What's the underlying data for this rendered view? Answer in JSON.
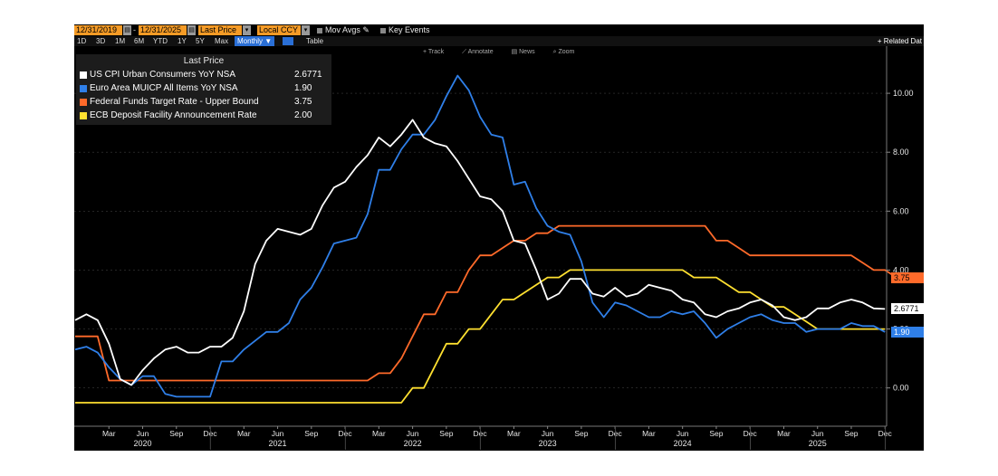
{
  "toolbar": {
    "start_date": "12/31/2019",
    "end_date": "12/31/2025",
    "field": "Last Price",
    "currency": "Local CCY",
    "mov_avgs": "Mov Avgs",
    "key_events": "Key Events",
    "periods": [
      "1D",
      "3D",
      "1M",
      "6M",
      "YTD",
      "1Y",
      "5Y",
      "Max"
    ],
    "frequency": "Monthly ▼",
    "table": "Table",
    "related": "+ Related Dat",
    "track": "Track",
    "annotate": "Annotate",
    "news": "News",
    "zoom": "Zoom"
  },
  "legend": {
    "header": "Last Price",
    "items": [
      {
        "name": "US CPI Urban Consumers YoY NSA",
        "value": "2.6771",
        "color": "#ffffff"
      },
      {
        "name": "Euro Area MUICP All Items YoY NSA",
        "value": "1.90",
        "color": "#2f7fe8"
      },
      {
        "name": "Federal Funds Target Rate - Upper Bound",
        "value": "3.75",
        "color": "#ff6a2a"
      },
      {
        "name": "ECB Deposit Facility Announcement Rate",
        "value": "2.00",
        "color": "#ffe030"
      }
    ]
  },
  "chart_data": {
    "type": "line",
    "title": "",
    "xlabel": "",
    "ylabel": "",
    "ylim": [
      -1.3,
      11.6
    ],
    "x_start": "2019-12",
    "yticks": [
      "0.00",
      "2.00",
      "4.00",
      "6.00",
      "8.00",
      "10.00"
    ],
    "ytick_values": [
      0,
      2,
      4,
      6,
      8,
      10
    ],
    "month_ticks": [
      "Mar",
      "Jun",
      "Sep",
      "Dec",
      "Mar",
      "Jun",
      "Sep",
      "Dec",
      "Mar",
      "Jun",
      "Sep",
      "Dec",
      "Mar",
      "Jun",
      "Sep",
      "Dec",
      "Mar",
      "Jun",
      "Sep",
      "Dec",
      "Mar",
      "Jun",
      "Sep",
      "Dec"
    ],
    "month_tick_index": [
      3,
      6,
      9,
      12,
      15,
      18,
      21,
      24,
      27,
      30,
      33,
      36,
      39,
      42,
      45,
      48,
      51,
      54,
      57,
      60,
      63,
      66,
      69,
      72
    ],
    "year_labels": [
      "2020",
      "2021",
      "2022",
      "2023",
      "2024",
      "2025"
    ],
    "year_label_index": [
      6,
      18,
      30,
      42,
      54,
      66
    ],
    "series": [
      {
        "name": "US CPI Urban Consumers YoY NSA",
        "color": "#ffffff",
        "last_label": "2.6771",
        "values": [
          2.3,
          2.5,
          2.3,
          1.5,
          0.3,
          0.1,
          0.6,
          1.0,
          1.3,
          1.4,
          1.2,
          1.2,
          1.4,
          1.4,
          1.7,
          2.6,
          4.2,
          5.0,
          5.4,
          5.3,
          5.2,
          5.4,
          6.2,
          6.8,
          7.0,
          7.5,
          7.9,
          8.5,
          8.2,
          8.6,
          9.1,
          8.5,
          8.3,
          8.2,
          7.7,
          7.1,
          6.5,
          6.4,
          6.0,
          5.0,
          4.9,
          4.0,
          3.0,
          3.2,
          3.7,
          3.7,
          3.2,
          3.1,
          3.4,
          3.1,
          3.2,
          3.5,
          3.4,
          3.3,
          3.0,
          2.9,
          2.5,
          2.4,
          2.6,
          2.7,
          2.9,
          3.0,
          2.8,
          2.4,
          2.3,
          2.4,
          2.7,
          2.7,
          2.9,
          3.0,
          2.9,
          2.7,
          2.68
        ]
      },
      {
        "name": "Euro Area MUICP All Items YoY NSA",
        "color": "#2f7fe8",
        "last_label": "1.90",
        "values": [
          1.3,
          1.4,
          1.2,
          0.7,
          0.3,
          0.1,
          0.4,
          0.4,
          -0.2,
          -0.3,
          -0.3,
          -0.3,
          -0.3,
          0.9,
          0.9,
          1.3,
          1.6,
          1.9,
          1.9,
          2.2,
          3.0,
          3.4,
          4.1,
          4.9,
          5.0,
          5.1,
          5.9,
          7.4,
          7.4,
          8.1,
          8.6,
          8.6,
          9.1,
          9.9,
          10.6,
          10.1,
          9.2,
          8.6,
          8.5,
          6.9,
          7.0,
          6.1,
          5.5,
          5.3,
          5.2,
          4.3,
          2.9,
          2.4,
          2.9,
          2.8,
          2.6,
          2.4,
          2.4,
          2.6,
          2.5,
          2.6,
          2.2,
          1.7,
          2.0,
          2.2,
          2.4,
          2.5,
          2.3,
          2.2,
          2.2,
          1.9,
          2.0,
          2.0,
          2.0,
          2.2,
          2.1,
          2.1,
          1.9
        ]
      },
      {
        "name": "Federal Funds Target Rate - Upper Bound",
        "color": "#ff6a2a",
        "last_label": "3.75",
        "values": [
          1.75,
          1.75,
          1.75,
          0.25,
          0.25,
          0.25,
          0.25,
          0.25,
          0.25,
          0.25,
          0.25,
          0.25,
          0.25,
          0.25,
          0.25,
          0.25,
          0.25,
          0.25,
          0.25,
          0.25,
          0.25,
          0.25,
          0.25,
          0.25,
          0.25,
          0.25,
          0.25,
          0.5,
          0.5,
          1.0,
          1.75,
          2.5,
          2.5,
          3.25,
          3.25,
          4.0,
          4.5,
          4.5,
          4.75,
          5.0,
          5.0,
          5.25,
          5.25,
          5.5,
          5.5,
          5.5,
          5.5,
          5.5,
          5.5,
          5.5,
          5.5,
          5.5,
          5.5,
          5.5,
          5.5,
          5.5,
          5.5,
          5.0,
          5.0,
          4.75,
          4.5,
          4.5,
          4.5,
          4.5,
          4.5,
          4.5,
          4.5,
          4.5,
          4.5,
          4.5,
          4.25,
          4.0,
          4.0,
          3.75
        ]
      },
      {
        "name": "ECB Deposit Facility Announcement Rate",
        "color": "#ffe030",
        "last_label": "2.00",
        "values": [
          -0.5,
          -0.5,
          -0.5,
          -0.5,
          -0.5,
          -0.5,
          -0.5,
          -0.5,
          -0.5,
          -0.5,
          -0.5,
          -0.5,
          -0.5,
          -0.5,
          -0.5,
          -0.5,
          -0.5,
          -0.5,
          -0.5,
          -0.5,
          -0.5,
          -0.5,
          -0.5,
          -0.5,
          -0.5,
          -0.5,
          -0.5,
          -0.5,
          -0.5,
          -0.5,
          0.0,
          0.0,
          0.75,
          1.5,
          1.5,
          2.0,
          2.0,
          2.5,
          3.0,
          3.0,
          3.25,
          3.5,
          3.75,
          3.75,
          4.0,
          4.0,
          4.0,
          4.0,
          4.0,
          4.0,
          4.0,
          4.0,
          4.0,
          4.0,
          4.0,
          3.75,
          3.75,
          3.75,
          3.5,
          3.25,
          3.25,
          3.0,
          2.75,
          2.75,
          2.5,
          2.25,
          2.0,
          2.0,
          2.0,
          2.0,
          2.0,
          2.0,
          2.0
        ]
      }
    ]
  }
}
